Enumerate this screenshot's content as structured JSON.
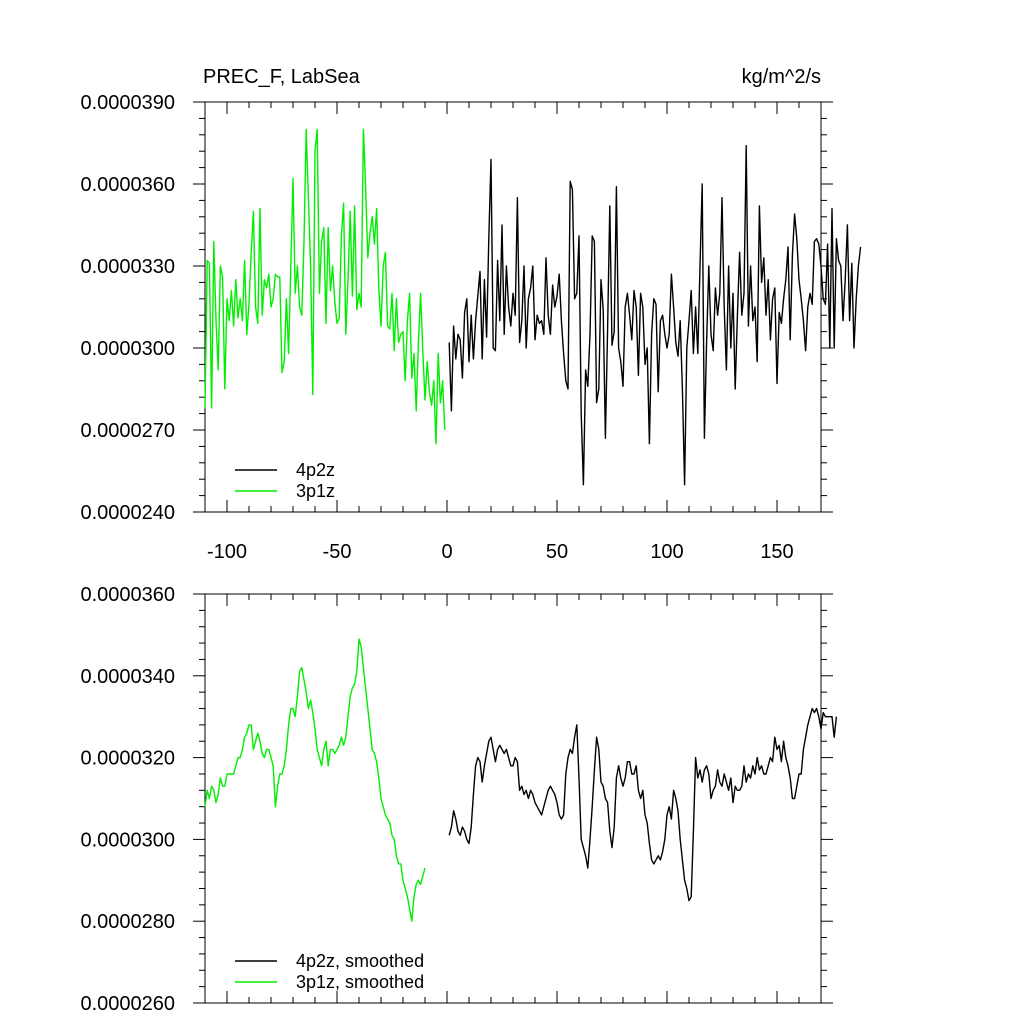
{
  "chart_data": [
    {
      "type": "line",
      "title": "PREC_F, LabSea",
      "units": "kg/m^2/s",
      "xlim": [
        -110,
        170
      ],
      "ylim": [
        2.4e-05,
        3.9e-05
      ],
      "x_ticks": [
        -100,
        -50,
        0,
        50,
        100,
        150
      ],
      "x_tick_labels": [
        "-100",
        "-50",
        "0",
        "50",
        "100",
        "150"
      ],
      "y_ticks": [
        2.4e-05,
        2.7e-05,
        3e-05,
        3.3e-05,
        3.6e-05,
        3.9e-05
      ],
      "y_tick_labels": [
        "0.0000240",
        "0.0000270",
        "0.0000300",
        "0.0000330",
        "0.0000360",
        "0.0000390"
      ],
      "grid": false,
      "legend_position": "bottom-left",
      "series": [
        {
          "name": "4p2z",
          "color": "#000000",
          "x_start": 1,
          "x_step": 1,
          "values": [
            3.02e-05,
            2.77e-05,
            3.08e-05,
            2.96e-05,
            3.05e-05,
            3.03e-05,
            2.89e-05,
            3.13e-05,
            3.18e-05,
            2.95e-05,
            3.12e-05,
            2.96e-05,
            3.1e-05,
            3.19e-05,
            3.28e-05,
            2.96e-05,
            3.25e-05,
            3.04e-05,
            3.4e-05,
            3.69e-05,
            3e-05,
            2.99e-05,
            3.32e-05,
            3.1e-05,
            3.45e-05,
            3.05e-05,
            3.3e-05,
            3.15e-05,
            3.08e-05,
            3.2e-05,
            3.12e-05,
            3.55e-05,
            3.02e-05,
            3.1e-05,
            3.3e-05,
            3e-05,
            3.18e-05,
            3.22e-05,
            3.3e-05,
            3.03e-05,
            3.12e-05,
            3.09e-05,
            3.1e-05,
            3.05e-05,
            3.33e-05,
            3.12e-05,
            3.05e-05,
            3.23e-05,
            3.15e-05,
            3.19e-05,
            3.27e-05,
            3.1e-05,
            2.98e-05,
            2.88e-05,
            2.85e-05,
            3.61e-05,
            3.58e-05,
            3.18e-05,
            3.2e-05,
            3.41e-05,
            2.76e-05,
            2.5e-05,
            2.92e-05,
            2.86e-05,
            3.05e-05,
            3.41e-05,
            3.39e-05,
            2.8e-05,
            2.85e-05,
            3.25e-05,
            3.14e-05,
            2.67e-05,
            3.07e-05,
            3.52e-05,
            3.01e-05,
            3.06e-05,
            3.59e-05,
            3e-05,
            2.95e-05,
            2.86e-05,
            3.15e-05,
            3.2e-05,
            3.12e-05,
            3.03e-05,
            3.21e-05,
            3.15e-05,
            2.9e-05,
            3.2e-05,
            3.15e-05,
            2.94e-05,
            3e-05,
            2.65e-05,
            3.05e-05,
            3.18e-05,
            3.16e-05,
            2.84e-05,
            3.1e-05,
            3.12e-05,
            3.05e-05,
            3e-05,
            3.05e-05,
            3.27e-05,
            3.15e-05,
            3.02e-05,
            2.97e-05,
            3.1e-05,
            2.85e-05,
            2.5e-05,
            3e-05,
            3.1e-05,
            3.21e-05,
            2.98e-05,
            3.15e-05,
            2.98e-05,
            3.3e-05,
            3.6e-05,
            2.67e-05,
            3.02e-05,
            3.3e-05,
            3.05e-05,
            2.99e-05,
            3.22e-05,
            3.12e-05,
            3.2e-05,
            3.55e-05,
            3.15e-05,
            2.92e-05,
            3.3e-05,
            3e-05,
            3.2e-05,
            2.85e-05,
            3.12e-05,
            3.35e-05,
            3.12e-05,
            3.2e-05,
            3.74e-05,
            3.08e-05,
            3.3e-05,
            3.1e-05,
            3.15e-05,
            2.95e-05,
            3.52e-05,
            3.24e-05,
            3.33e-05,
            3.12e-05,
            3.25e-05,
            3.03e-05,
            3.18e-05,
            3.22e-05,
            2.87e-05,
            3.13e-05,
            3.09e-05,
            3.18e-05,
            3.25e-05,
            3.37e-05,
            3.03e-05,
            3.34e-05,
            3.49e-05,
            3.4e-05,
            3.25e-05,
            3.18e-05,
            3.1e-05,
            2.99e-05,
            3.15e-05,
            3.2e-05,
            3.16e-05,
            3.39e-05,
            3.4e-05,
            3.38e-05,
            3.3e-05,
            3.18e-05,
            3.16e-05,
            3.38e-05,
            3e-05,
            3.51e-05,
            3e-05,
            3.4e-05,
            3.32e-05,
            3.3e-05,
            3.1e-05,
            3.25e-05,
            3.45e-05,
            3.1e-05,
            3.31e-05,
            3e-05,
            3.18e-05,
            3.3e-05,
            3.37e-05
          ]
        },
        {
          "name": "3p1z",
          "color": "#00ee00",
          "x_start": -110,
          "x_step": 1,
          "values": [
            2.78e-05,
            3.32e-05,
            3.31e-05,
            2.78e-05,
            3.39e-05,
            3.1e-05,
            2.92e-05,
            3.3e-05,
            3.26e-05,
            2.85e-05,
            3.18e-05,
            3.1e-05,
            3.21e-05,
            3.08e-05,
            3.25e-05,
            3.11e-05,
            3.18e-05,
            3.1e-05,
            3.32e-05,
            3.05e-05,
            3.16e-05,
            3.35e-05,
            3.5e-05,
            3.15e-05,
            3.09e-05,
            3.51e-05,
            3.12e-05,
            3.25e-05,
            3.22e-05,
            3.27e-05,
            3.15e-05,
            3.18e-05,
            3.27e-05,
            3.26e-05,
            3.26e-05,
            2.91e-05,
            2.95e-05,
            3.18e-05,
            2.98e-05,
            3.3e-05,
            3.62e-05,
            3.2e-05,
            3.3e-05,
            3.15e-05,
            3.12e-05,
            3.39e-05,
            3.8e-05,
            3.55e-05,
            3.3e-05,
            2.83e-05,
            3.72e-05,
            3.8e-05,
            3.2e-05,
            3.39e-05,
            3.44e-05,
            3.09e-05,
            3.44e-05,
            3.21e-05,
            3.3e-05,
            3.17e-05,
            3.09e-05,
            3.11e-05,
            3.41e-05,
            3.53e-05,
            3.05e-05,
            3.25e-05,
            3.5e-05,
            3.19e-05,
            3.52e-05,
            3.14e-05,
            3.2e-05,
            3.15e-05,
            3.8e-05,
            3.59e-05,
            3.33e-05,
            3.42e-05,
            3.48e-05,
            3.38e-05,
            3.51e-05,
            3.22e-05,
            3.08e-05,
            3.3e-05,
            3.35e-05,
            3.08e-05,
            3.07e-05,
            3.2e-05,
            2.99e-05,
            3.18e-05,
            3.02e-05,
            3.05e-05,
            3.06e-05,
            2.88e-05,
            3.1e-05,
            3.2e-05,
            2.89e-05,
            2.98e-05,
            2.77e-05,
            3.02e-05,
            3.2e-05,
            2.99e-05,
            2.81e-05,
            2.95e-05,
            2.84e-05,
            2.79e-05,
            2.88e-05,
            2.65e-05,
            2.98e-05,
            2.8e-05,
            2.88e-05,
            2.7e-05
          ]
        }
      ]
    },
    {
      "type": "line",
      "xlim": [
        -110,
        170
      ],
      "ylim": [
        2.6e-05,
        3.6e-05
      ],
      "x_ticks": [
        -100,
        -50,
        0,
        50,
        100,
        150
      ],
      "y_ticks": [
        2.6e-05,
        2.8e-05,
        3e-05,
        3.2e-05,
        3.4e-05,
        3.6e-05
      ],
      "y_tick_labels": [
        "0.0000260",
        "0.0000280",
        "0.0000300",
        "0.0000320",
        "0.0000340",
        "0.0000360"
      ],
      "grid": false,
      "legend_position": "bottom-left",
      "series": [
        {
          "name": "4p2z, smoothed",
          "color": "#000000",
          "x_start": 1,
          "x_step": 1,
          "values": [
            3.01e-05,
            3.03e-05,
            3.07e-05,
            3.05e-05,
            3.02e-05,
            3.01e-05,
            3.03e-05,
            3.02e-05,
            3e-05,
            2.99e-05,
            3.03e-05,
            3.11e-05,
            3.18e-05,
            3.2e-05,
            3.19e-05,
            3.14e-05,
            3.18e-05,
            3.21e-05,
            3.24e-05,
            3.25e-05,
            3.22e-05,
            3.19e-05,
            3.22e-05,
            3.23e-05,
            3.22e-05,
            3.21e-05,
            3.22e-05,
            3.2e-05,
            3.18e-05,
            3.18e-05,
            3.2e-05,
            3.19e-05,
            3.12e-05,
            3.13e-05,
            3.11e-05,
            3.12e-05,
            3.1e-05,
            3.12e-05,
            3.11e-05,
            3.09e-05,
            3.08e-05,
            3.07e-05,
            3.06e-05,
            3.08e-05,
            3.1e-05,
            3.12e-05,
            3.13e-05,
            3.12e-05,
            3.11e-05,
            3.09e-05,
            3.06e-05,
            3.05e-05,
            3.06e-05,
            3.16e-05,
            3.2e-05,
            3.22e-05,
            3.21e-05,
            3.25e-05,
            3.28e-05,
            3.15e-05,
            3e-05,
            2.98e-05,
            2.96e-05,
            2.93e-05,
            3e-05,
            3.08e-05,
            3.17e-05,
            3.25e-05,
            3.22e-05,
            3.14e-05,
            3.13e-05,
            3.1e-05,
            3.09e-05,
            3.02e-05,
            2.98e-05,
            3.03e-05,
            3.15e-05,
            3.18e-05,
            3.15e-05,
            3.13e-05,
            3.15e-05,
            3.19e-05,
            3.19e-05,
            3.16e-05,
            3.16e-05,
            3.18e-05,
            3.12e-05,
            3.1e-05,
            3.12e-05,
            3.06e-05,
            3.04e-05,
            2.99e-05,
            2.95e-05,
            2.94e-05,
            2.95e-05,
            2.96e-05,
            2.95e-05,
            2.97e-05,
            3e-05,
            3.06e-05,
            3.08e-05,
            3.05e-05,
            3.12e-05,
            3.1e-05,
            3.07e-05,
            3e-05,
            2.95e-05,
            2.9e-05,
            2.88e-05,
            2.85e-05,
            2.86e-05,
            3.02e-05,
            3.2e-05,
            3.15e-05,
            3.17e-05,
            3.14e-05,
            3.17e-05,
            3.18e-05,
            3.16e-05,
            3.1e-05,
            3.12e-05,
            3.13e-05,
            3.17e-05,
            3.14e-05,
            3.13e-05,
            3.16e-05,
            3.14e-05,
            3.12e-05,
            3.15e-05,
            3.09e-05,
            3.13e-05,
            3.12e-05,
            3.12e-05,
            3.13e-05,
            3.18e-05,
            3.14e-05,
            3.16e-05,
            3.15e-05,
            3.18e-05,
            3.16e-05,
            3.2e-05,
            3.17e-05,
            3.18e-05,
            3.16e-05,
            3.16e-05,
            3.18e-05,
            3.2e-05,
            3.19e-05,
            3.25e-05,
            3.22e-05,
            3.23e-05,
            3.19e-05,
            3.24e-05,
            3.2e-05,
            3.18e-05,
            3.15e-05,
            3.1e-05,
            3.1e-05,
            3.13e-05,
            3.16e-05,
            3.16e-05,
            3.22e-05,
            3.25e-05,
            3.28e-05,
            3.3e-05,
            3.32e-05,
            3.31e-05,
            3.32e-05,
            3.3e-05,
            3.27e-05,
            3.31e-05,
            3.3e-05,
            3.3e-05,
            3.3e-05,
            3.3e-05,
            3.25e-05,
            3.3e-05
          ]
        },
        {
          "name": "3p1z, smoothed",
          "color": "#00ee00",
          "x_start": -110,
          "x_step": 1,
          "values": [
            3.08e-05,
            3.12e-05,
            3.1e-05,
            3.13e-05,
            3.12e-05,
            3.09e-05,
            3.11e-05,
            3.15e-05,
            3.13e-05,
            3.13e-05,
            3.16e-05,
            3.16e-05,
            3.16e-05,
            3.16e-05,
            3.18e-05,
            3.2e-05,
            3.2e-05,
            3.22e-05,
            3.25e-05,
            3.26e-05,
            3.28e-05,
            3.28e-05,
            3.22e-05,
            3.24e-05,
            3.26e-05,
            3.24e-05,
            3.21e-05,
            3.2e-05,
            3.22e-05,
            3.22e-05,
            3.2e-05,
            3.18e-05,
            3.08e-05,
            3.13e-05,
            3.16e-05,
            3.16e-05,
            3.18e-05,
            3.22e-05,
            3.28e-05,
            3.32e-05,
            3.32e-05,
            3.3e-05,
            3.35e-05,
            3.41e-05,
            3.42e-05,
            3.39e-05,
            3.36e-05,
            3.32e-05,
            3.34e-05,
            3.31e-05,
            3.27e-05,
            3.22e-05,
            3.2e-05,
            3.18e-05,
            3.22e-05,
            3.24e-05,
            3.18e-05,
            3.22e-05,
            3.22e-05,
            3.21e-05,
            3.22e-05,
            3.23e-05,
            3.25e-05,
            3.23e-05,
            3.25e-05,
            3.3e-05,
            3.35e-05,
            3.37e-05,
            3.38e-05,
            3.41e-05,
            3.49e-05,
            3.47e-05,
            3.42e-05,
            3.37e-05,
            3.32e-05,
            3.27e-05,
            3.22e-05,
            3.21e-05,
            3.19e-05,
            3.15e-05,
            3.1e-05,
            3.08e-05,
            3.06e-05,
            3.05e-05,
            3.04e-05,
            3.01e-05,
            3e-05,
            2.96e-05,
            2.94e-05,
            2.94e-05,
            2.9e-05,
            2.88e-05,
            2.86e-05,
            2.83e-05,
            2.8e-05,
            2.86e-05,
            2.89e-05,
            2.9e-05,
            2.89e-05,
            2.91e-05,
            2.93e-05
          ]
        }
      ]
    }
  ]
}
